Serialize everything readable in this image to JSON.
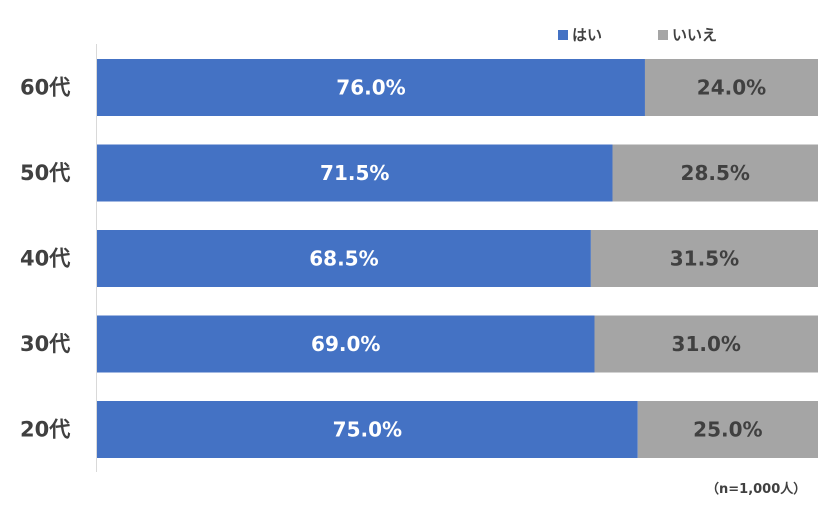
{
  "chart_data": {
    "type": "bar",
    "orientation": "horizontal",
    "stacked": true,
    "percent": true,
    "categories": [
      "60代",
      "50代",
      "40代",
      "30代",
      "20代"
    ],
    "series": [
      {
        "name": "はい",
        "color": "#4472C4",
        "values": [
          76.0,
          71.5,
          68.5,
          69.0,
          75.0
        ]
      },
      {
        "name": "いいえ",
        "color": "#A5A5A5",
        "values": [
          24.0,
          28.5,
          31.5,
          31.0,
          25.0
        ]
      }
    ],
    "xlim": [
      0,
      100
    ],
    "legend": "top-right",
    "note": "（n=1,000人）"
  }
}
